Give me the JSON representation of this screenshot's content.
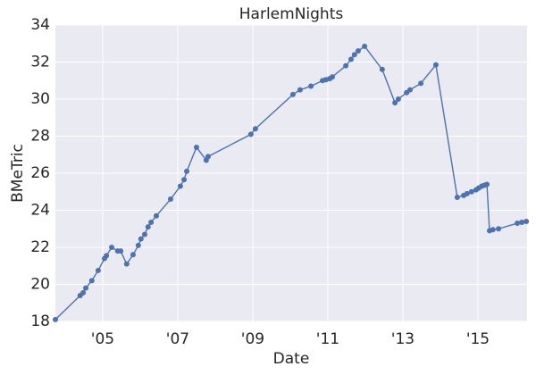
{
  "chart_data": {
    "type": "line",
    "title": "HarlemNights",
    "x_label": "Date",
    "y_label": "BMeTric",
    "x": [
      2003.74,
      2004.4,
      2004.48,
      2004.55,
      2004.71,
      2004.88,
      2005.05,
      2005.1,
      2005.24,
      2005.4,
      2005.48,
      2005.64,
      2005.81,
      2005.95,
      2006.02,
      2006.12,
      2006.21,
      2006.29,
      2006.43,
      2006.81,
      2007.07,
      2007.17,
      2007.24,
      2007.5,
      2007.76,
      2007.81,
      2008.95,
      2009.07,
      2010.07,
      2010.26,
      2010.55,
      2010.86,
      2010.95,
      2011.05,
      2011.12,
      2011.48,
      2011.62,
      2011.71,
      2011.81,
      2011.98,
      2012.45,
      2012.79,
      2012.88,
      2013.1,
      2013.19,
      2013.48,
      2013.88,
      2014.45,
      2014.62,
      2014.71,
      2014.83,
      2014.95,
      2015.02,
      2015.1,
      2015.17,
      2015.24,
      2015.31,
      2015.4,
      2015.55,
      2016.05,
      2016.17,
      2016.29
    ],
    "series": [
      {
        "name": "BMeTric",
        "color": "#4c72b0",
        "values": [
          18.1,
          19.4,
          19.55,
          19.8,
          20.2,
          20.75,
          21.4,
          21.55,
          22.0,
          21.8,
          21.8,
          21.1,
          21.6,
          22.1,
          22.45,
          22.7,
          23.1,
          23.35,
          23.7,
          24.6,
          25.3,
          25.65,
          26.1,
          27.4,
          26.7,
          26.9,
          28.1,
          28.4,
          30.25,
          30.5,
          30.7,
          31.0,
          31.05,
          31.1,
          31.2,
          31.8,
          32.15,
          32.4,
          32.6,
          32.85,
          31.6,
          29.8,
          30.0,
          30.35,
          30.5,
          30.85,
          31.85,
          24.7,
          24.8,
          24.9,
          25.0,
          25.1,
          25.2,
          25.3,
          25.35,
          25.4,
          22.9,
          22.95,
          23.0,
          23.3,
          23.35,
          23.4
        ]
      }
    ],
    "xlim": [
      2003.74,
      2016.31
    ],
    "xticks": [
      {
        "value": 2005,
        "label": "'05"
      },
      {
        "value": 2007,
        "label": "'07"
      },
      {
        "value": 2009,
        "label": "'09"
      },
      {
        "value": 2011,
        "label": "'11"
      },
      {
        "value": 2013,
        "label": "'13"
      },
      {
        "value": 2015,
        "label": "'15"
      }
    ],
    "ylim": [
      18,
      34
    ],
    "yticks": [
      18,
      20,
      22,
      24,
      26,
      28,
      30,
      32,
      34
    ],
    "grid": true,
    "background": "#eaeaf2"
  }
}
